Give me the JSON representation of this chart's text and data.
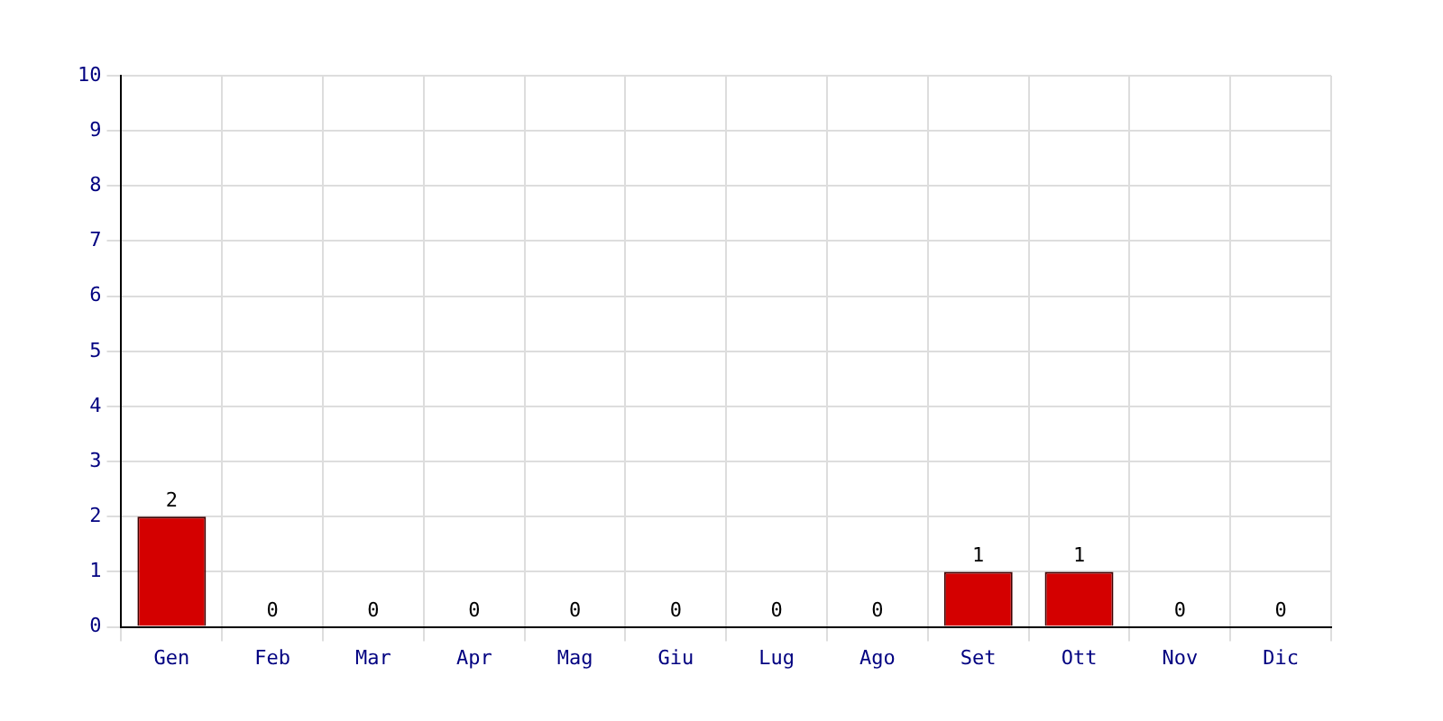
{
  "chart_data": {
    "type": "bar",
    "categories": [
      "Gen",
      "Feb",
      "Mar",
      "Apr",
      "Mag",
      "Giu",
      "Lug",
      "Ago",
      "Set",
      "Ott",
      "Nov",
      "Dic"
    ],
    "values": [
      2,
      0,
      0,
      0,
      0,
      0,
      0,
      0,
      1,
      1,
      0,
      0
    ],
    "color": "#d40000",
    "ylim": [
      0,
      10
    ],
    "yticks": [
      0,
      1,
      2,
      3,
      4,
      5,
      6,
      7,
      8,
      9,
      10
    ],
    "grid": true,
    "data_labels": true
  }
}
